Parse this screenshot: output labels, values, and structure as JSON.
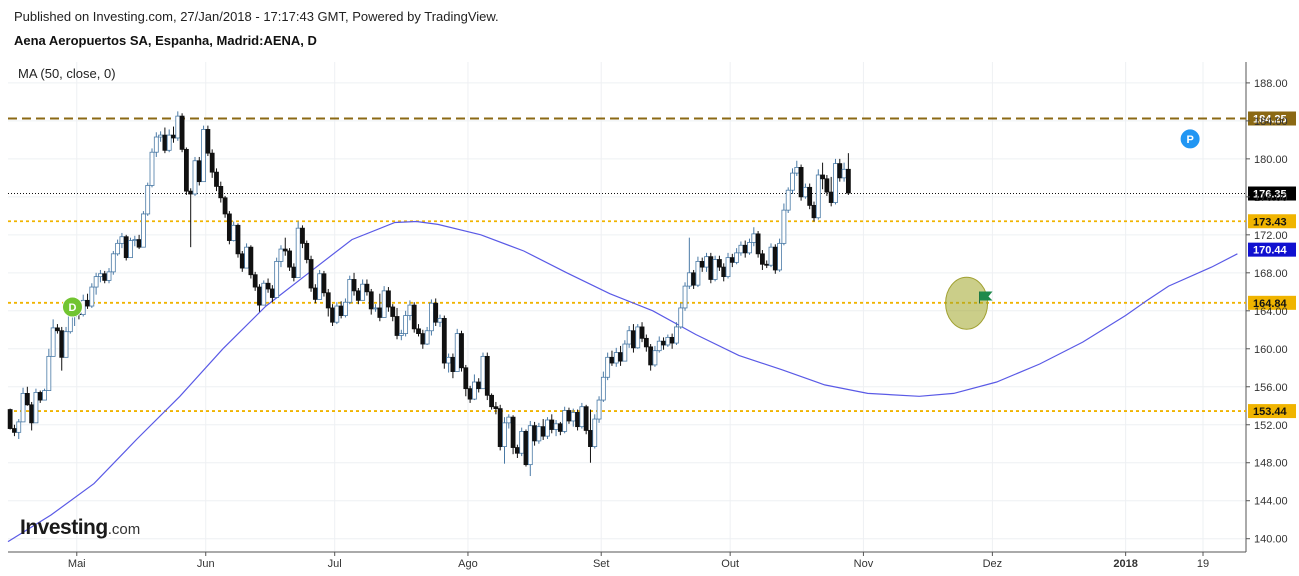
{
  "header": {
    "published": "Published on Investing.com, 27/Jan/2018 - 17:17:43 GMT, Powered by TradingView.",
    "title": "Aena Aeropuertos SA, Espanha, Madrid:AENA, D"
  },
  "logo": {
    "main": "Investing",
    "suffix": ".com"
  },
  "chart_data": {
    "type": "candlestick",
    "indicator_label": "MA (50, close, 0)",
    "ylim": [
      138.6,
      190.2
    ],
    "y_ticks": [
      140,
      144,
      148,
      152,
      156,
      160,
      164,
      168,
      172,
      176,
      180,
      184,
      188
    ],
    "y_tick_labels": [
      "140.00",
      "144.00",
      "148.00",
      "152.00",
      "156.00",
      "160.00",
      "164.00",
      "168.00",
      "172.00",
      "176.00",
      "180.00",
      "184.00",
      "188.00"
    ],
    "x_ticks": [
      {
        "label": "Mai",
        "day": 16
      },
      {
        "label": "Jun",
        "day": 46
      },
      {
        "label": "Jul",
        "day": 76
      },
      {
        "label": "Ago",
        "day": 107
      },
      {
        "label": "Set",
        "day": 138
      },
      {
        "label": "Out",
        "day": 168
      },
      {
        "label": "Nov",
        "day": 199
      },
      {
        "label": "Dez",
        "day": 229
      },
      {
        "label": "2018",
        "day": 260,
        "bold": true
      },
      {
        "label": "19",
        "day": 278
      }
    ],
    "x_range_days": [
      0,
      288
    ],
    "grid": true,
    "price_levels": [
      {
        "value": 184.25,
        "label": "184.25",
        "style": "dashed",
        "color": "#8B6914",
        "label_bg": "#8B6914"
      },
      {
        "value": 173.43,
        "label": "173.43",
        "style": "dotted",
        "color": "#F0B400",
        "label_bg": "#F0B400"
      },
      {
        "value": 164.84,
        "label": "164.84",
        "style": "dotted",
        "color": "#F0B400",
        "label_bg": "#F0B400"
      },
      {
        "value": 153.44,
        "label": "153.44",
        "style": "dotted",
        "color": "#F0B400",
        "label_bg": "#F0B400"
      }
    ],
    "last_price": {
      "value": 176.35,
      "label": "176.35",
      "color": "#000000"
    },
    "ma_last": {
      "value": 170.44,
      "label": "170.44",
      "color": "#1010D0"
    },
    "markers": [
      {
        "text": "D",
        "day": 15,
        "value": 164.4,
        "color": "#72C431"
      },
      {
        "text": "P",
        "day": 275,
        "value": 182.1,
        "color": "#2196F3"
      }
    ],
    "highlight": {
      "day": 223,
      "value": 164.8,
      "flag_day": 226,
      "flag_value": 165.4
    },
    "ma_series": [
      [
        0,
        139.7
      ],
      [
        10,
        142.5
      ],
      [
        20,
        145.8
      ],
      [
        30,
        150.5
      ],
      [
        40,
        155.0
      ],
      [
        50,
        160.0
      ],
      [
        60,
        164.5
      ],
      [
        70,
        168.0
      ],
      [
        80,
        171.5
      ],
      [
        90,
        173.3
      ],
      [
        95,
        173.4
      ],
      [
        100,
        173.1
      ],
      [
        110,
        172.0
      ],
      [
        120,
        170.3
      ],
      [
        130,
        168.0
      ],
      [
        140,
        165.8
      ],
      [
        150,
        164.0
      ],
      [
        160,
        161.5
      ],
      [
        170,
        159.3
      ],
      [
        180,
        157.8
      ],
      [
        190,
        156.2
      ],
      [
        200,
        155.3
      ],
      [
        212,
        155.0
      ],
      [
        220,
        155.3
      ],
      [
        230,
        156.5
      ],
      [
        240,
        158.4
      ],
      [
        250,
        160.7
      ],
      [
        260,
        163.5
      ],
      [
        265,
        165.1
      ],
      [
        270,
        166.6
      ],
      [
        280,
        168.6
      ],
      [
        286,
        170.0
      ]
    ],
    "ohlc": [
      [
        153.6,
        153.7,
        151.5,
        151.6
      ],
      [
        151.6,
        152.0,
        150.8,
        151.2
      ],
      [
        151.2,
        152.6,
        150.5,
        152.3
      ],
      [
        152.3,
        155.9,
        152.3,
        155.3
      ],
      [
        155.3,
        156.0,
        154.0,
        154.1
      ],
      [
        154.1,
        154.4,
        151.4,
        152.2
      ],
      [
        152.2,
        155.8,
        152.2,
        155.4
      ],
      [
        155.4,
        155.6,
        154.3,
        154.6
      ],
      [
        154.6,
        155.8,
        154.6,
        155.6
      ],
      [
        155.6,
        160.0,
        155.6,
        159.2
      ],
      [
        159.2,
        163.1,
        159.2,
        162.2
      ],
      [
        162.2,
        162.6,
        161.6,
        161.9
      ],
      [
        161.9,
        162.3,
        157.7,
        159.1
      ],
      [
        159.1,
        162.3,
        159.1,
        161.8
      ],
      [
        161.8,
        164.3,
        161.6,
        163.4
      ],
      [
        163.4,
        164.6,
        162.4,
        164.1
      ],
      [
        164.1,
        164.3,
        163.1,
        163.6
      ],
      [
        163.6,
        165.7,
        163.4,
        165.1
      ],
      [
        165.1,
        165.8,
        164.2,
        164.5
      ],
      [
        164.5,
        166.9,
        164.3,
        166.5
      ],
      [
        166.5,
        168.0,
        165.7,
        167.6
      ],
      [
        167.6,
        168.3,
        167.0,
        167.9
      ],
      [
        167.9,
        168.2,
        166.9,
        167.2
      ],
      [
        167.2,
        168.5,
        166.9,
        168.1
      ],
      [
        168.1,
        170.3,
        167.8,
        170.0
      ],
      [
        170.0,
        171.5,
        169.8,
        171.1
      ],
      [
        171.1,
        172.2,
        170.6,
        171.8
      ],
      [
        171.8,
        172.0,
        169.3,
        169.6
      ],
      [
        169.6,
        171.7,
        169.6,
        171.4
      ],
      [
        171.4,
        171.9,
        170.8,
        171.5
      ],
      [
        171.5,
        172.0,
        170.5,
        170.7
      ],
      [
        170.7,
        174.5,
        170.7,
        174.2
      ],
      [
        174.2,
        177.5,
        174.0,
        177.2
      ],
      [
        177.2,
        181.1,
        177.0,
        180.7
      ],
      [
        180.7,
        182.8,
        180.2,
        182.3
      ],
      [
        182.3,
        182.9,
        181.8,
        182.5
      ],
      [
        182.5,
        183.3,
        180.6,
        180.9
      ],
      [
        180.9,
        183.1,
        180.7,
        182.5
      ],
      [
        182.5,
        183.4,
        181.7,
        182.2
      ],
      [
        182.2,
        185.0,
        181.9,
        184.5
      ],
      [
        184.5,
        184.8,
        180.7,
        181.0
      ],
      [
        181.0,
        181.2,
        176.2,
        176.6
      ],
      [
        176.6,
        176.9,
        170.7,
        176.3
      ],
      [
        176.3,
        180.2,
        176.1,
        179.8
      ],
      [
        179.8,
        180.2,
        177.2,
        177.6
      ],
      [
        177.6,
        183.5,
        177.6,
        183.1
      ],
      [
        183.1,
        183.5,
        180.3,
        180.6
      ],
      [
        180.6,
        181.0,
        178.0,
        178.6
      ],
      [
        178.6,
        179.0,
        176.6,
        177.1
      ],
      [
        177.1,
        177.6,
        175.4,
        175.9
      ],
      [
        175.9,
        176.1,
        173.8,
        174.2
      ],
      [
        174.2,
        174.5,
        171.0,
        171.4
      ],
      [
        171.4,
        173.4,
        171.3,
        173.0
      ],
      [
        173.0,
        173.2,
        169.6,
        170.0
      ],
      [
        170.0,
        170.3,
        168.1,
        168.5
      ],
      [
        168.5,
        171.1,
        168.5,
        170.7
      ],
      [
        170.7,
        170.9,
        167.4,
        167.8
      ],
      [
        167.8,
        168.1,
        166.1,
        166.5
      ],
      [
        166.5,
        166.8,
        163.9,
        164.6
      ],
      [
        164.6,
        167.2,
        164.6,
        166.9
      ],
      [
        166.9,
        167.4,
        165.9,
        166.3
      ],
      [
        166.3,
        166.7,
        164.9,
        165.4
      ],
      [
        165.4,
        169.6,
        165.4,
        169.2
      ],
      [
        169.2,
        170.9,
        168.6,
        170.5
      ],
      [
        170.5,
        171.7,
        169.8,
        170.3
      ],
      [
        170.3,
        170.6,
        168.2,
        168.6
      ],
      [
        168.6,
        169.0,
        167.1,
        167.5
      ],
      [
        167.5,
        173.4,
        167.5,
        172.7
      ],
      [
        172.7,
        173.0,
        170.6,
        171.1
      ],
      [
        171.1,
        171.4,
        169.0,
        169.4
      ],
      [
        169.4,
        169.8,
        166.0,
        166.4
      ],
      [
        166.4,
        166.8,
        164.8,
        165.2
      ],
      [
        165.2,
        168.3,
        165.2,
        167.9
      ],
      [
        167.9,
        168.2,
        165.5,
        165.9
      ],
      [
        165.9,
        166.3,
        163.4,
        164.3
      ],
      [
        164.3,
        164.7,
        162.4,
        162.8
      ],
      [
        162.8,
        164.9,
        162.6,
        164.5
      ],
      [
        164.5,
        165.0,
        163.2,
        163.5
      ],
      [
        163.5,
        165.3,
        163.3,
        164.9
      ],
      [
        164.9,
        167.7,
        164.7,
        167.3
      ],
      [
        167.3,
        168.0,
        165.6,
        166.1
      ],
      [
        166.1,
        166.4,
        164.7,
        165.1
      ],
      [
        165.1,
        167.3,
        165.1,
        166.8
      ],
      [
        166.8,
        167.3,
        165.6,
        166.0
      ],
      [
        166.0,
        166.3,
        163.6,
        164.2
      ],
      [
        164.2,
        164.7,
        163.9,
        164.3
      ],
      [
        164.3,
        165.8,
        162.9,
        163.3
      ],
      [
        163.3,
        166.6,
        163.3,
        166.1
      ],
      [
        166.1,
        166.5,
        163.9,
        164.4
      ],
      [
        164.4,
        164.7,
        162.9,
        163.4
      ],
      [
        163.4,
        164.3,
        161.0,
        161.4
      ],
      [
        161.4,
        162.0,
        160.9,
        161.6
      ],
      [
        161.6,
        164.0,
        161.3,
        163.5
      ],
      [
        163.5,
        165.1,
        163.0,
        164.6
      ],
      [
        164.6,
        164.9,
        161.7,
        162.1
      ],
      [
        162.1,
        162.6,
        161.3,
        161.6
      ],
      [
        161.6,
        162.0,
        160.0,
        160.5
      ],
      [
        160.5,
        162.3,
        160.4,
        161.9
      ],
      [
        161.9,
        165.2,
        161.4,
        164.8
      ],
      [
        164.8,
        165.3,
        162.4,
        162.8
      ],
      [
        162.8,
        163.6,
        162.3,
        163.2
      ],
      [
        163.2,
        163.5,
        157.9,
        158.5
      ],
      [
        158.5,
        159.5,
        157.5,
        159.1
      ],
      [
        159.1,
        159.5,
        156.9,
        157.6
      ],
      [
        157.6,
        162.1,
        157.6,
        161.6
      ],
      [
        161.6,
        161.9,
        157.6,
        158.0
      ],
      [
        158.0,
        158.3,
        155.0,
        155.8
      ],
      [
        155.8,
        156.1,
        154.3,
        154.7
      ],
      [
        154.7,
        157.3,
        154.6,
        156.5
      ],
      [
        156.5,
        156.9,
        155.4,
        155.8
      ],
      [
        155.8,
        159.6,
        155.8,
        159.2
      ],
      [
        159.2,
        159.6,
        154.6,
        155.1
      ],
      [
        155.1,
        155.3,
        153.6,
        153.9
      ],
      [
        153.9,
        154.4,
        153.1,
        153.7
      ],
      [
        153.7,
        154.1,
        149.3,
        149.7
      ],
      [
        149.7,
        152.8,
        147.9,
        152.2
      ],
      [
        152.2,
        153.1,
        151.6,
        152.8
      ],
      [
        152.8,
        153.0,
        148.9,
        149.6
      ],
      [
        149.6,
        149.9,
        148.5,
        149.0
      ],
      [
        149.0,
        151.7,
        148.7,
        151.3
      ],
      [
        151.3,
        151.5,
        147.6,
        147.8
      ],
      [
        147.8,
        152.4,
        146.6,
        151.9
      ],
      [
        151.9,
        152.3,
        149.8,
        150.3
      ],
      [
        150.3,
        152.2,
        150.0,
        151.8
      ],
      [
        151.8,
        152.6,
        150.4,
        150.8
      ],
      [
        150.8,
        152.8,
        150.5,
        152.5
      ],
      [
        152.5,
        153.1,
        151.1,
        151.5
      ],
      [
        151.5,
        152.5,
        150.8,
        152.1
      ],
      [
        152.1,
        152.3,
        150.9,
        151.3
      ],
      [
        151.3,
        153.9,
        151.1,
        153.5
      ],
      [
        153.5,
        153.8,
        152.1,
        152.4
      ],
      [
        152.4,
        153.7,
        151.8,
        153.3
      ],
      [
        153.3,
        153.6,
        151.4,
        151.8
      ],
      [
        151.8,
        154.3,
        151.6,
        153.9
      ],
      [
        153.9,
        154.1,
        151.0,
        151.4
      ],
      [
        151.4,
        153.6,
        148.0,
        149.7
      ],
      [
        149.7,
        153.1,
        149.5,
        152.6
      ],
      [
        152.6,
        155.0,
        152.2,
        154.6
      ],
      [
        154.6,
        157.6,
        154.4,
        157.0
      ],
      [
        157.0,
        159.6,
        156.7,
        159.1
      ],
      [
        159.1,
        159.8,
        158.2,
        158.5
      ],
      [
        158.5,
        160.1,
        158.1,
        159.6
      ],
      [
        159.6,
        160.3,
        158.2,
        158.7
      ],
      [
        158.7,
        160.9,
        158.7,
        160.5
      ],
      [
        160.5,
        162.4,
        160.1,
        161.9
      ],
      [
        161.9,
        162.6,
        159.6,
        160.1
      ],
      [
        160.1,
        162.6,
        160.0,
        162.3
      ],
      [
        162.3,
        162.8,
        160.7,
        161.1
      ],
      [
        161.1,
        161.5,
        159.7,
        160.2
      ],
      [
        160.2,
        160.5,
        157.7,
        158.3
      ],
      [
        158.3,
        160.3,
        158.1,
        159.8
      ],
      [
        159.8,
        161.3,
        159.6,
        160.8
      ],
      [
        160.8,
        161.2,
        159.9,
        160.4
      ],
      [
        160.4,
        161.5,
        160.2,
        161.2
      ],
      [
        161.2,
        161.6,
        160.0,
        160.6
      ],
      [
        160.6,
        162.8,
        160.4,
        162.3
      ],
      [
        162.3,
        164.8,
        162.1,
        164.3
      ],
      [
        164.3,
        167.0,
        164.0,
        166.6
      ],
      [
        166.6,
        171.7,
        166.3,
        168.0
      ],
      [
        168.0,
        168.3,
        166.3,
        166.7
      ],
      [
        166.7,
        169.7,
        166.5,
        169.2
      ],
      [
        169.2,
        169.6,
        168.1,
        168.6
      ],
      [
        168.6,
        170.1,
        168.1,
        169.7
      ],
      [
        169.7,
        170.1,
        166.9,
        167.3
      ],
      [
        167.3,
        169.8,
        167.1,
        169.4
      ],
      [
        169.4,
        169.8,
        168.2,
        168.6
      ],
      [
        168.6,
        169.0,
        167.1,
        167.6
      ],
      [
        167.6,
        170.1,
        167.4,
        169.6
      ],
      [
        169.6,
        170.0,
        168.6,
        169.1
      ],
      [
        169.1,
        170.6,
        168.9,
        170.1
      ],
      [
        170.1,
        171.3,
        169.8,
        170.9
      ],
      [
        170.9,
        171.4,
        169.6,
        170.1
      ],
      [
        170.1,
        171.6,
        169.9,
        171.2
      ],
      [
        171.2,
        172.8,
        170.8,
        172.1
      ],
      [
        172.1,
        172.4,
        169.6,
        170.0
      ],
      [
        170.0,
        170.4,
        168.3,
        168.9
      ],
      [
        168.9,
        169.3,
        168.5,
        168.8
      ],
      [
        168.8,
        171.1,
        168.6,
        170.7
      ],
      [
        170.7,
        171.0,
        167.9,
        168.3
      ],
      [
        168.3,
        171.6,
        168.1,
        171.1
      ],
      [
        171.1,
        175.3,
        170.9,
        174.6
      ],
      [
        174.6,
        177.0,
        174.3,
        176.7
      ],
      [
        176.7,
        179.0,
        176.3,
        178.5
      ],
      [
        178.5,
        179.8,
        178.2,
        179.1
      ],
      [
        179.1,
        179.4,
        175.6,
        176.0
      ],
      [
        176.0,
        177.4,
        175.8,
        177.0
      ],
      [
        177.0,
        177.4,
        174.7,
        175.1
      ],
      [
        175.1,
        175.5,
        173.4,
        173.8
      ],
      [
        173.8,
        178.9,
        173.6,
        178.3
      ],
      [
        178.3,
        179.6,
        176.8,
        177.9
      ],
      [
        177.9,
        178.3,
        176.1,
        176.5
      ],
      [
        176.5,
        178.1,
        175.0,
        175.4
      ],
      [
        175.4,
        180.0,
        175.2,
        179.5
      ],
      [
        179.5,
        180.0,
        177.6,
        178.0
      ],
      [
        178.0,
        179.6,
        177.6,
        178.9
      ],
      [
        178.9,
        180.6,
        176.2,
        176.4
      ]
    ]
  }
}
